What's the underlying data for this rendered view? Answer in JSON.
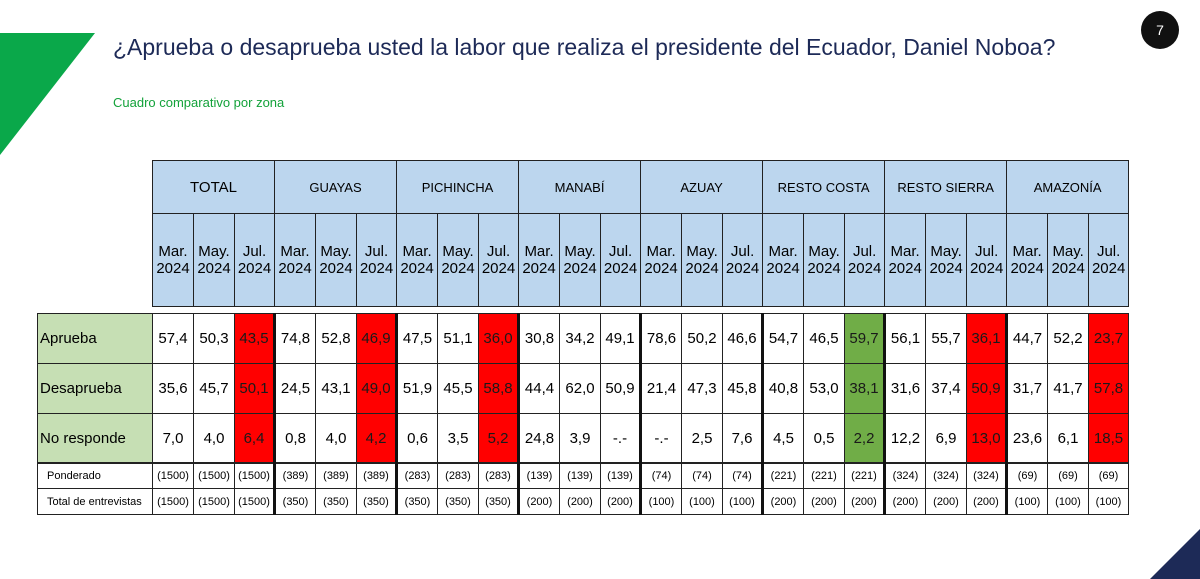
{
  "page_number": "7",
  "title": "¿Aprueba o desaprueba usted la labor que realiza el presidente del Ecuador, Daniel Noboa?",
  "subtitle": "Cuadro comparativo por zona",
  "colors": {
    "title": "#1d2a57",
    "subtitle": "#13a23a",
    "header_bg": "#bcd6ee",
    "label_bg": "#c6dfb4",
    "red": "#ff0000",
    "green": "#70ad47",
    "accent_green": "#0aa84a",
    "navy": "#1d2a57"
  },
  "zones": [
    "TOTAL",
    "GUAYAS",
    "PICHINCHA",
    "MANABÍ",
    "AZUAY",
    "RESTO COSTA",
    "RESTO SIERRA",
    "AMAZONÍA"
  ],
  "periods": [
    {
      "m": "Mar.",
      "y": "2024"
    },
    {
      "m": "May.",
      "y": "2024"
    },
    {
      "m": "Jul.",
      "y": "2024"
    }
  ],
  "rows": [
    {
      "label": "Aprueba",
      "values": [
        "57,4",
        "50,3",
        "43,5",
        "74,8",
        "52,8",
        "46,9",
        "47,5",
        "51,1",
        "36,0",
        "30,8",
        "34,2",
        "49,1",
        "78,6",
        "50,2",
        "46,6",
        "54,7",
        "46,5",
        "59,7",
        "56,1",
        "55,7",
        "36,1",
        "44,7",
        "52,2",
        "23,7"
      ]
    },
    {
      "label": "Desaprueba",
      "values": [
        "35,6",
        "45,7",
        "50,1",
        "24,5",
        "43,1",
        "49,0",
        "51,9",
        "45,5",
        "58,8",
        "44,4",
        "62,0",
        "50,9",
        "21,4",
        "47,3",
        "45,8",
        "40,8",
        "53,0",
        "38,1",
        "31,6",
        "37,4",
        "50,9",
        "31,7",
        "41,7",
        "57,8"
      ]
    },
    {
      "label": "No responde",
      "values": [
        "7,0",
        "4,0",
        "6,4",
        "0,8",
        "4,0",
        "4,2",
        "0,6",
        "3,5",
        "5,2",
        "24,8",
        "3,9",
        "-.-",
        "-.-",
        "2,5",
        "7,6",
        "4,5",
        "0,5",
        "2,2",
        "12,2",
        "6,9",
        "13,0",
        "23,6",
        "6,1",
        "18,5"
      ]
    }
  ],
  "highlights": {
    "red": [
      "0-2",
      "0-5",
      "0-8",
      "0-20",
      "0-23",
      "1-2",
      "1-5",
      "1-8",
      "1-20",
      "1-23",
      "2-2",
      "2-5",
      "2-8",
      "2-20",
      "2-23"
    ],
    "green": [
      "0-17",
      "1-17",
      "2-17"
    ]
  },
  "counts": [
    {
      "label": "Ponderado",
      "values": [
        "(1500)",
        "(1500)",
        "(1500)",
        "(389)",
        "(389)",
        "(389)",
        "(283)",
        "(283)",
        "(283)",
        "(139)",
        "(139)",
        "(139)",
        "(74)",
        "(74)",
        "(74)",
        "(221)",
        "(221)",
        "(221)",
        "(324)",
        "(324)",
        "(324)",
        "(69)",
        "(69)",
        "(69)"
      ]
    },
    {
      "label": "Total de entrevistas",
      "values": [
        "(1500)",
        "(1500)",
        "(1500)",
        "(350)",
        "(350)",
        "(350)",
        "(350)",
        "(350)",
        "(350)",
        "(200)",
        "(200)",
        "(200)",
        "(100)",
        "(100)",
        "(100)",
        "(200)",
        "(200)",
        "(200)",
        "(200)",
        "(200)",
        "(200)",
        "(100)",
        "(100)",
        "(100)"
      ]
    }
  ]
}
